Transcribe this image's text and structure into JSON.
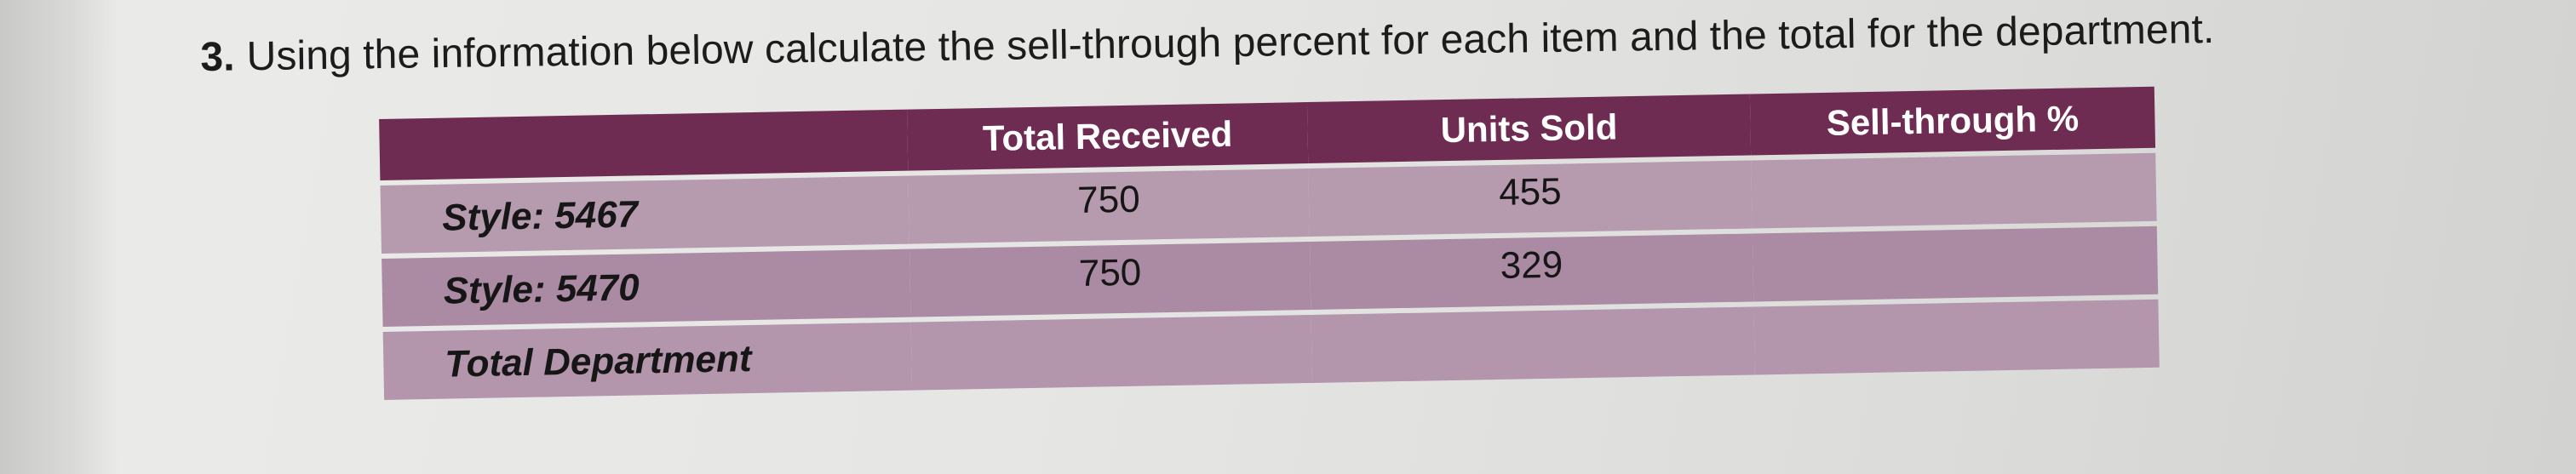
{
  "question": {
    "number": "3.",
    "text": "Using the information below calculate the sell-through percent for each item and the total for the department."
  },
  "table": {
    "headers": [
      "",
      "Total Received",
      "Units Sold",
      "Sell-through %"
    ],
    "rows": [
      {
        "label": "Style: 5467",
        "total_received": "750",
        "units_sold": "455",
        "sell_through": ""
      },
      {
        "label": "Style: 5470",
        "total_received": "750",
        "units_sold": "329",
        "sell_through": ""
      },
      {
        "label": "Total Department",
        "total_received": "",
        "units_sold": "",
        "sell_through": ""
      }
    ]
  },
  "colors": {
    "header_bg": "#6e2c52",
    "row_bg": "#b69aae",
    "page_bg": "#e6e6e4"
  }
}
